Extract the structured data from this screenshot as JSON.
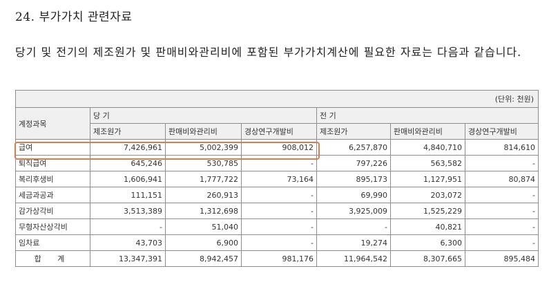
{
  "title": "24. 부가가치 관련자료",
  "paragraph": "당기 및 전기의 제조원가 및 판매비와관리비에 포함된  부가가치계산에 필요한 자료는 다음과 같습니다.",
  "table": {
    "unit": "(단위: 천원)",
    "account_header": "계정과목",
    "period_current": "당    기",
    "period_prior": "전    기",
    "columns": [
      "제조원가",
      "판매비와관리비",
      "경상연구개발비",
      "제조원가",
      "판매비와관리비",
      "경상연구개발비"
    ],
    "rows": [
      {
        "label": "급여",
        "values": [
          "7,426,961",
          "5,002,399",
          "908,012",
          "6,257,870",
          "4,840,710",
          "814,610"
        ]
      },
      {
        "label": "퇴직급여",
        "values": [
          "645,246",
          "530,785",
          "-",
          "797,226",
          "563,582",
          "-"
        ]
      },
      {
        "label": "복리후생비",
        "values": [
          "1,606,941",
          "1,777,722",
          "73,164",
          "895,173",
          "1,127,951",
          "80,874"
        ]
      },
      {
        "label": "세금과공과",
        "values": [
          "111,151",
          "260,913",
          "-",
          "69,990",
          "203,072",
          "-"
        ]
      },
      {
        "label": "감가상각비",
        "values": [
          "3,513,389",
          "1,312,698",
          "-",
          "3,925,009",
          "1,525,229",
          "-"
        ]
      },
      {
        "label": "무형자산상각비",
        "values": [
          "-",
          "51,040",
          "-",
          "-",
          "40,821",
          "-"
        ]
      },
      {
        "label": "임차료",
        "values": [
          "43,703",
          "6,900",
          "-",
          "19,274",
          "6,300",
          "-"
        ]
      }
    ],
    "total": {
      "label": "합 계",
      "values": [
        "13,347,391",
        "8,942,457",
        "981,176",
        "11,964,542",
        "8,307,665",
        "895,484"
      ]
    }
  },
  "colors": {
    "highlight": "#e07a4a",
    "header_bg": "#f0f0f0",
    "border": "#8c8c8c"
  }
}
